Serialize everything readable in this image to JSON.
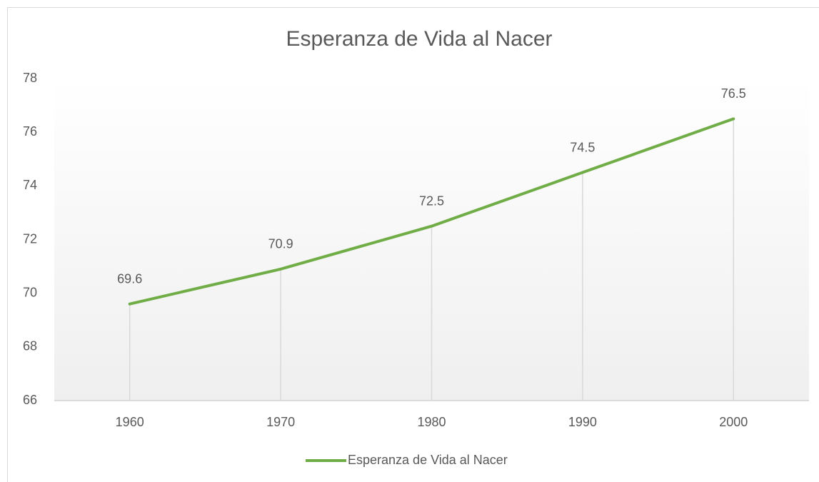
{
  "chart_data": {
    "type": "line",
    "title": "Esperanza de Vida al Nacer",
    "categories": [
      "1960",
      "1970",
      "1980",
      "1990",
      "2000"
    ],
    "series": [
      {
        "name": "Esperanza de Vida al Nacer",
        "color": "#70ad47",
        "values": [
          69.6,
          70.9,
          72.5,
          74.5,
          76.5
        ]
      }
    ],
    "ylim": [
      66,
      78
    ],
    "yticks": [
      66,
      68,
      70,
      72,
      74,
      76,
      78
    ],
    "drop_lines": true,
    "legend": "bottom"
  }
}
